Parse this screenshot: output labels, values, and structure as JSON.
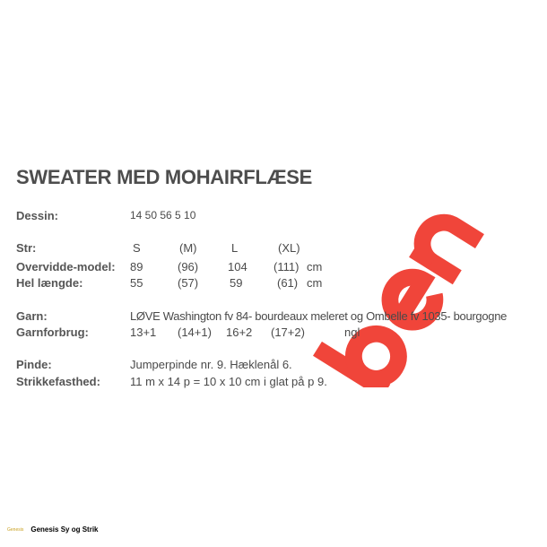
{
  "title": "SWEATER MED MOHAIRFLÆSE",
  "dessin": {
    "label": "Dessin:",
    "value": "14 50 56 5 10"
  },
  "sizes": {
    "label": "Str:",
    "values": [
      "S",
      "(M)",
      "L",
      "(XL)"
    ]
  },
  "overvidde": {
    "label": "Overvidde-model:",
    "values": [
      "89",
      "(96)",
      "104",
      "(111)"
    ],
    "unit": "cm"
  },
  "laengde": {
    "label": "Hel længde:",
    "values": [
      "55",
      "(57)",
      "59",
      "(61)"
    ],
    "unit": "cm"
  },
  "garn": {
    "label": "Garn:",
    "value": "LØVE Washington fv 84- bourdeaux meleret og Ombelle fv 1035- bourgogne"
  },
  "garnforbrug": {
    "label": "Garnforbrug:",
    "values": [
      "13+1",
      "(14+1)",
      "16+2",
      "(17+2)"
    ],
    "unit": "ngl"
  },
  "pinde": {
    "label": "Pinde:",
    "value": "Jumperpinde nr. 9. Hæklenål 6."
  },
  "strikkefasthed": {
    "label": "Strikkefasthed:",
    "value": "11 m x 14 p = 10 x 10 cm i glat på p 9."
  },
  "watermark": {
    "text": "ben",
    "color": "#f0453a"
  },
  "footer": {
    "logo": "Genesis",
    "text": "Genesis Sy og Strik"
  }
}
